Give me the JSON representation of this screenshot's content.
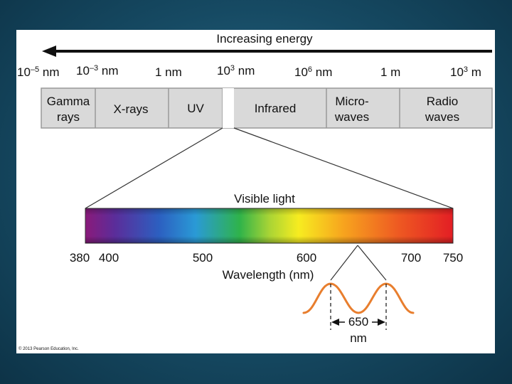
{
  "title": "Increasing energy",
  "scale_labels": [
    {
      "base": "10",
      "exp": "–5",
      "unit": " nm"
    },
    {
      "base": "10",
      "exp": "–3",
      "unit": " nm"
    },
    {
      "base": "1 nm",
      "exp": "",
      "unit": ""
    },
    {
      "base": "10",
      "exp": "3",
      "unit": " nm"
    },
    {
      "base": "10",
      "exp": "6",
      "unit": " nm"
    },
    {
      "base": "1 m",
      "exp": "",
      "unit": ""
    },
    {
      "base": "10",
      "exp": "3",
      "unit": " m"
    }
  ],
  "bands": [
    {
      "line1": "Gamma",
      "line2": "rays"
    },
    {
      "line1": "X-rays",
      "line2": ""
    },
    {
      "line1": "UV",
      "line2": ""
    },
    {
      "line1": "Infrared",
      "line2": ""
    },
    {
      "line1": "Micro-",
      "line2": "waves"
    },
    {
      "line1": "Radio",
      "line2": "waves"
    }
  ],
  "visible_title": "Visible light",
  "visible_ticks": [
    "380",
    "400",
    "500",
    "600",
    "700",
    "750"
  ],
  "wavelength_axis_label": "Wavelength (nm)",
  "wave_label_value": "650",
  "wave_label_unit": "nm",
  "copyright": "© 2013 Pearson Education, Inc.",
  "colors": {
    "band_fill": "#d9d9d9",
    "band_border": "#999999",
    "wave": "#e87e2e",
    "arrow": "#111111",
    "spectrum": [
      "#8a1a7a",
      "#5b2d9a",
      "#2c5fc0",
      "#2a9ad6",
      "#2fb34a",
      "#a8d435",
      "#f7ec20",
      "#f7a51e",
      "#ee5a22",
      "#e31e24"
    ]
  }
}
